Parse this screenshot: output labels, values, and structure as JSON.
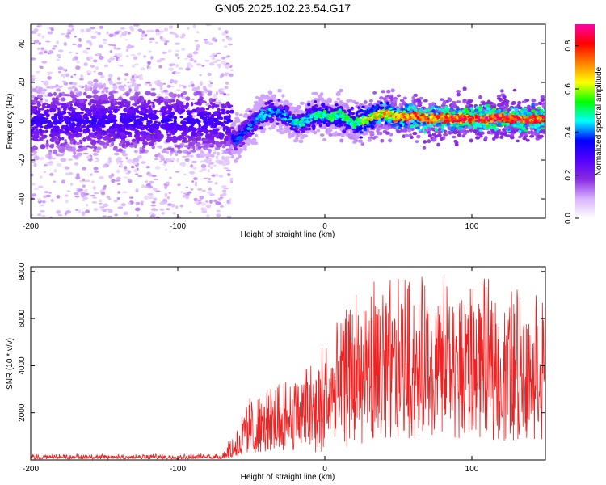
{
  "title": "GN05.2025.102.23.54.G17",
  "chart_data": [
    {
      "type": "heatmap",
      "name": "spectrogram",
      "xlabel": "Height of straight line (km)",
      "ylabel": "Frequency (Hz)",
      "xlim": [
        -200,
        150
      ],
      "ylim": [
        -50,
        50
      ],
      "x_ticks": [
        -200,
        -100,
        0,
        100
      ],
      "x_tick_labels": [
        "-200",
        "-100",
        "0",
        "100"
      ],
      "y_ticks": [
        -40,
        -20,
        0,
        20,
        40
      ],
      "y_tick_labels": [
        "-40",
        "-20",
        "0",
        "20",
        "40"
      ],
      "colorbar": {
        "label": "Normalized spectral amplitude",
        "range": [
          0.0,
          0.9
        ],
        "ticks": [
          0.0,
          0.2,
          0.4,
          0.6,
          0.8
        ],
        "tick_labels": [
          "0.0",
          "0.2",
          "0.4",
          "0.6",
          "0.8"
        ],
        "colormap": [
          "#ffffff",
          "#d9b3ff",
          "#8a2be2",
          "#5500ff",
          "#0000ff",
          "#00ffff",
          "#00ff00",
          "#ffff00",
          "#ff8000",
          "#ff0000",
          "#ff00aa"
        ]
      },
      "noise_region_x": [
        -200,
        -63
      ],
      "center_frequency_trace": {
        "x": [
          -200,
          -150,
          -100,
          -80,
          -70,
          -63,
          -60,
          -55,
          -50,
          -45,
          -40,
          -35,
          -30,
          -25,
          -20,
          -15,
          -10,
          -5,
          0,
          5,
          10,
          15,
          20,
          25,
          30,
          35,
          40,
          50,
          60,
          70,
          80,
          90,
          100,
          110,
          120,
          130,
          140,
          150
        ],
        "y": [
          0,
          1,
          0,
          -3,
          -5,
          -8,
          -9,
          -6,
          -2,
          2,
          4,
          5,
          4,
          2,
          -1,
          0,
          2,
          3,
          3,
          2,
          4,
          1,
          -1,
          0,
          2,
          3,
          4,
          2,
          3,
          1,
          2,
          1,
          2,
          1,
          2,
          1,
          1,
          1
        ],
        "peak_amplitude": [
          0.25,
          0.25,
          0.25,
          0.28,
          0.3,
          0.35,
          0.38,
          0.4,
          0.42,
          0.45,
          0.46,
          0.45,
          0.42,
          0.45,
          0.5,
          0.5,
          0.5,
          0.52,
          0.55,
          0.55,
          0.55,
          0.55,
          0.55,
          0.6,
          0.65,
          0.7,
          0.72,
          0.75,
          0.8,
          0.82,
          0.82,
          0.85,
          0.88,
          0.88,
          0.88,
          0.88,
          0.88,
          0.85
        ]
      }
    },
    {
      "type": "line",
      "name": "snr",
      "xlabel": "Height of straight line (km)",
      "ylabel": "SNR (10 * v/v)",
      "xlim": [
        -200,
        150
      ],
      "ylim": [
        0,
        8200
      ],
      "x_ticks": [
        -200,
        -100,
        0,
        100
      ],
      "x_tick_labels": [
        "-200",
        "-100",
        "0",
        "100"
      ],
      "y_ticks": [
        2000,
        4000,
        6000,
        8000
      ],
      "y_tick_labels": [
        "2000",
        "4000",
        "6000",
        "8000"
      ],
      "color": "#ee2222",
      "envelope": {
        "x": [
          -200,
          -100,
          -70,
          -63,
          -55,
          -45,
          -30,
          -15,
          0,
          10,
          20,
          30,
          40,
          60,
          80,
          100,
          120,
          150
        ],
        "low": [
          30,
          30,
          40,
          100,
          200,
          300,
          400,
          300,
          300,
          400,
          600,
          700,
          800,
          900,
          900,
          900,
          800,
          800
        ],
        "mean": [
          120,
          120,
          130,
          300,
          900,
          1200,
          1500,
          1800,
          2200,
          2800,
          3300,
          3600,
          3800,
          3900,
          3900,
          3900,
          3800,
          3700
        ],
        "high": [
          250,
          260,
          280,
          1200,
          2600,
          3200,
          3500,
          4300,
          5200,
          6000,
          7200,
          7800,
          7900,
          7900,
          7900,
          7800,
          7600,
          7200
        ]
      }
    }
  ]
}
